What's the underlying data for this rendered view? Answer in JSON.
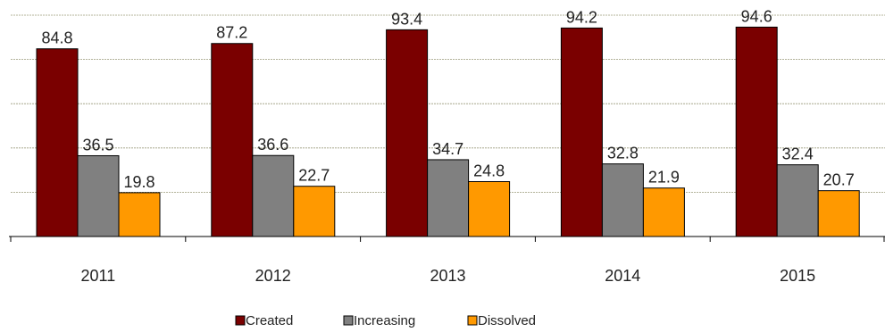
{
  "chart_data": {
    "type": "bar",
    "categories": [
      "2011",
      "2012",
      "2013",
      "2014",
      "2015"
    ],
    "series": [
      {
        "name": "Created",
        "color": "#7a0000",
        "values": [
          84.8,
          87.2,
          93.4,
          94.2,
          94.6
        ]
      },
      {
        "name": "Increasing",
        "color": "#808080",
        "values": [
          36.5,
          36.6,
          34.7,
          32.8,
          32.4
        ]
      },
      {
        "name": "Dissolved",
        "color": "#ff9900",
        "values": [
          19.8,
          22.7,
          24.8,
          21.9,
          20.7
        ]
      }
    ],
    "ylim": [
      0,
      100
    ],
    "grid": true,
    "legend": "bottom-center",
    "title": "",
    "xlabel": "",
    "ylabel": ""
  }
}
